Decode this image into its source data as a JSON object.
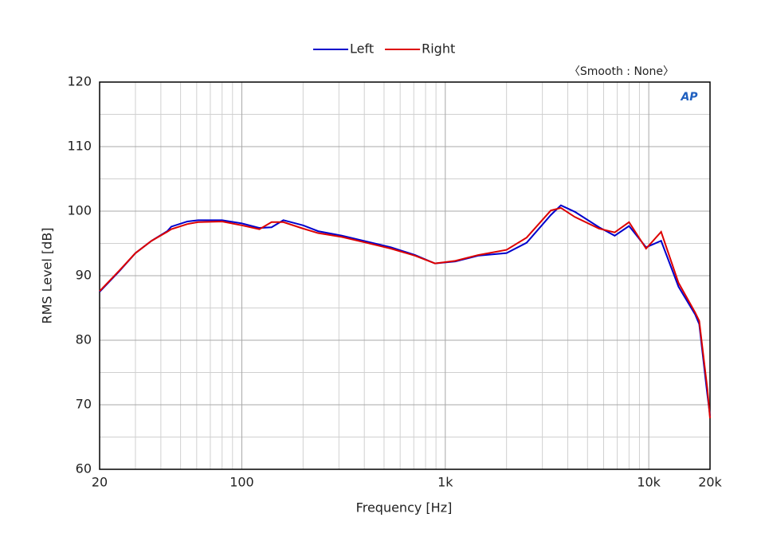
{
  "chart_data": {
    "type": "line",
    "x_label": "Frequency [Hz]",
    "y_label": "RMS Level [dB]",
    "annotation": "〈Smooth : None〉",
    "logo": "AP",
    "x_scale": "log",
    "grid": true,
    "xlim": [
      20,
      20000
    ],
    "ylim": [
      60,
      120
    ],
    "xticks": [
      20,
      100,
      {
        "value": 1000,
        "label": "1k"
      },
      {
        "value": 10000,
        "label": "10k"
      },
      {
        "value": 20000,
        "label": "20k"
      }
    ],
    "xminorticks": [
      30,
      40,
      50,
      60,
      70,
      80,
      90,
      200,
      300,
      400,
      500,
      600,
      700,
      800,
      900,
      2000,
      3000,
      4000,
      5000,
      6000,
      7000,
      8000,
      9000
    ],
    "yticks": [
      60,
      70,
      80,
      90,
      100,
      110,
      120
    ],
    "yminorticks": [
      65,
      75,
      85,
      95,
      105,
      115
    ],
    "x": [
      20,
      25,
      30,
      36,
      43,
      45,
      54,
      61,
      80,
      100,
      122,
      140,
      160,
      200,
      237,
      310,
      410,
      540,
      710,
      890,
      1120,
      1450,
      2000,
      2510,
      3300,
      3700,
      4330,
      5700,
      6800,
      8000,
      9700,
      11500,
      14000,
      16900,
      17700,
      19400,
      20000
    ],
    "series": [
      {
        "name": "Left",
        "color": "#0000cc",
        "values": [
          87.5,
          90.7,
          93.5,
          95.4,
          96.9,
          97.6,
          98.4,
          98.6,
          98.6,
          98.1,
          97.4,
          97.5,
          98.6,
          97.8,
          96.9,
          96.2,
          95.3,
          94.4,
          93.2,
          91.9,
          92.2,
          93.1,
          93.5,
          95.1,
          99.4,
          100.9,
          99.9,
          97.5,
          96.2,
          97.7,
          94.4,
          95.4,
          88.3,
          84.0,
          82.5,
          71.6,
          68.3
        ]
      },
      {
        "name": "Right",
        "color": "#dd0000",
        "values": [
          87.6,
          90.8,
          93.5,
          95.4,
          96.8,
          97.2,
          98.0,
          98.3,
          98.4,
          97.8,
          97.2,
          98.3,
          98.3,
          97.3,
          96.6,
          96.0,
          95.1,
          94.2,
          93.1,
          91.9,
          92.3,
          93.2,
          94.0,
          95.9,
          100.1,
          100.5,
          99.1,
          97.3,
          96.7,
          98.3,
          94.2,
          96.8,
          88.9,
          84.3,
          83.0,
          72.5,
          67.9
        ]
      }
    ]
  }
}
